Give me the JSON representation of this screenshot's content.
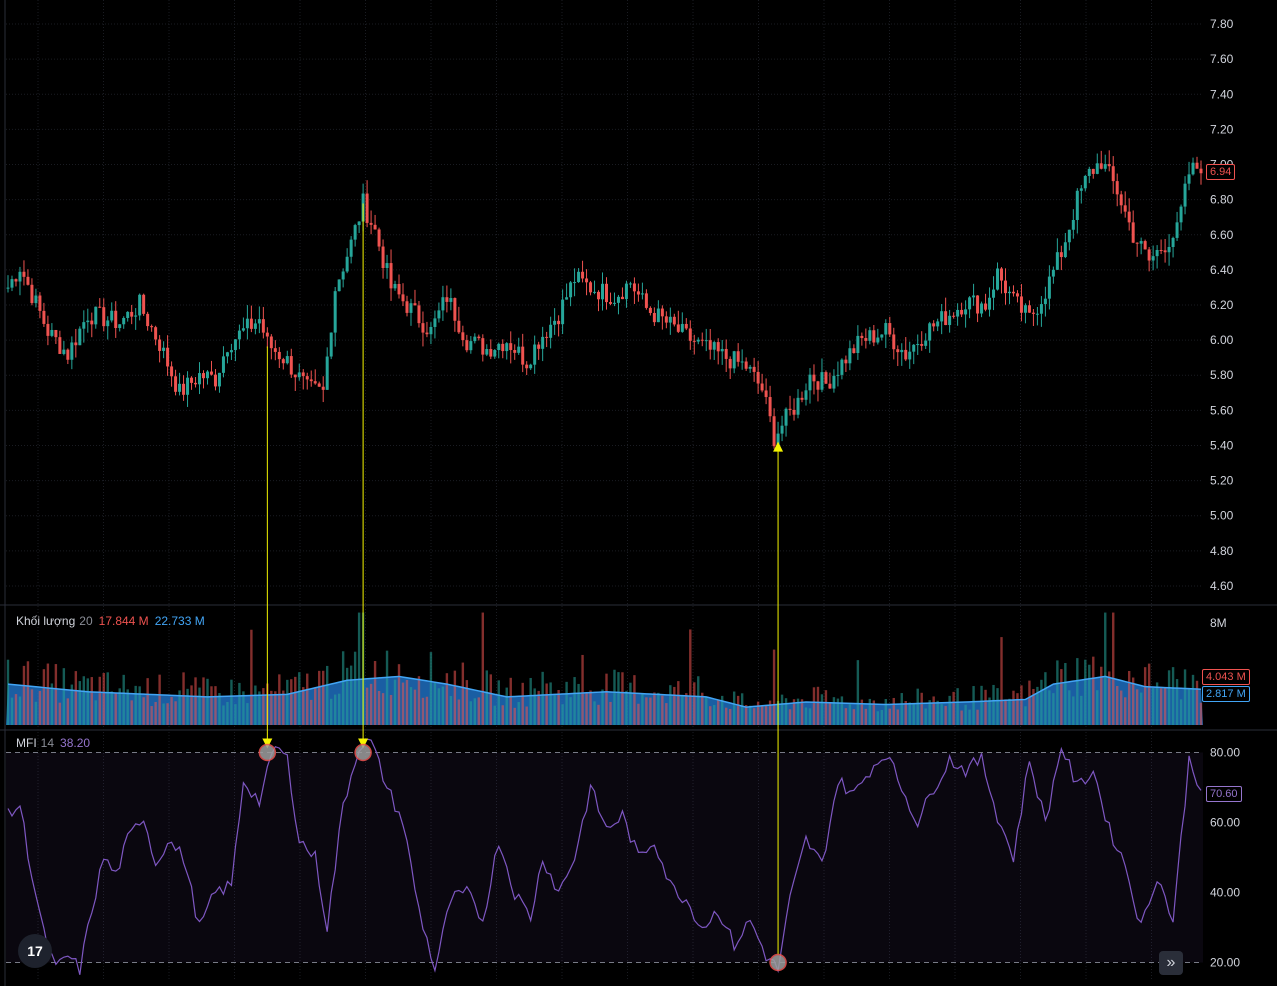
{
  "chart_data": [
    {
      "type": "candlestick",
      "name": "price",
      "y_ticks": [
        "7.80",
        "7.60",
        "7.40",
        "7.20",
        "7.00",
        "6.80",
        "6.60",
        "6.40",
        "6.20",
        "6.00",
        "5.80",
        "5.60",
        "5.40",
        "5.20",
        "5.00",
        "4.80",
        "4.60"
      ],
      "ylim": [
        4.52,
        7.88
      ],
      "last_price": "6.94",
      "up_color": "#26a69a",
      "down_color": "#ef5350",
      "anchor_points": [
        [
          0,
          6.3
        ],
        [
          3,
          6.42
        ],
        [
          10,
          6.05
        ],
        [
          15,
          5.92
        ],
        [
          20,
          6.15
        ],
        [
          28,
          6.1
        ],
        [
          33,
          6.2
        ],
        [
          38,
          5.98
        ],
        [
          43,
          5.7
        ],
        [
          48,
          5.8
        ],
        [
          52,
          5.78
        ],
        [
          55,
          5.98
        ],
        [
          63,
          6.12
        ],
        [
          65,
          5.98
        ],
        [
          70,
          5.88
        ],
        [
          75,
          5.72
        ],
        [
          79,
          5.7
        ],
        [
          82,
          6.3
        ],
        [
          86,
          6.55
        ],
        [
          89,
          6.78
        ],
        [
          92,
          6.62
        ],
        [
          96,
          6.3
        ],
        [
          100,
          6.2
        ],
        [
          106,
          6.05
        ],
        [
          110,
          6.25
        ],
        [
          115,
          6.0
        ],
        [
          120,
          5.95
        ],
        [
          125,
          6.0
        ],
        [
          130,
          5.88
        ],
        [
          133,
          6.0
        ],
        [
          138,
          6.15
        ],
        [
          142,
          6.35
        ],
        [
          146,
          6.3
        ],
        [
          152,
          6.25
        ],
        [
          156,
          6.33
        ],
        [
          160,
          6.18
        ],
        [
          165,
          6.1
        ],
        [
          170,
          6.02
        ],
        [
          175,
          5.95
        ],
        [
          180,
          5.9
        ],
        [
          185,
          5.85
        ],
        [
          189,
          5.72
        ],
        [
          192,
          5.45
        ],
        [
          195,
          5.55
        ],
        [
          198,
          5.65
        ],
        [
          201,
          5.8
        ],
        [
          205,
          5.75
        ],
        [
          210,
          5.9
        ],
        [
          214,
          6.0
        ],
        [
          220,
          6.05
        ],
        [
          225,
          5.92
        ],
        [
          230,
          6.05
        ],
        [
          236,
          6.15
        ],
        [
          240,
          6.22
        ],
        [
          245,
          6.2
        ],
        [
          248,
          6.38
        ],
        [
          252,
          6.22
        ],
        [
          256,
          6.12
        ],
        [
          260,
          6.28
        ],
        [
          264,
          6.5
        ],
        [
          268,
          6.8
        ],
        [
          271,
          6.95
        ],
        [
          274,
          7.02
        ],
        [
          278,
          6.85
        ],
        [
          282,
          6.6
        ],
        [
          286,
          6.45
        ],
        [
          290,
          6.55
        ],
        [
          293,
          6.62
        ],
        [
          296,
          6.95
        ],
        [
          299,
          7.0
        ]
      ],
      "count": 300
    },
    {
      "type": "volume",
      "name": "Khối lượng",
      "param": "20",
      "value_down": "17.844 M",
      "value_up": "22.733 M",
      "y_ticks": [
        "8M"
      ],
      "tag_volume": "4.043 M",
      "tag_ma": "2.817 M",
      "ma_anchor": [
        [
          0,
          3.2
        ],
        [
          20,
          2.6
        ],
        [
          50,
          2.2
        ],
        [
          70,
          2.4
        ],
        [
          85,
          3.5
        ],
        [
          98,
          3.8
        ],
        [
          110,
          3.2
        ],
        [
          125,
          2.2
        ],
        [
          150,
          2.6
        ],
        [
          175,
          2.2
        ],
        [
          185,
          1.4
        ],
        [
          200,
          1.8
        ],
        [
          220,
          1.6
        ],
        [
          240,
          1.8
        ],
        [
          255,
          2.0
        ],
        [
          262,
          3.2
        ],
        [
          275,
          3.8
        ],
        [
          285,
          3.0
        ],
        [
          299,
          2.8
        ]
      ],
      "ylim": [
        0,
        9
      ]
    },
    {
      "type": "line",
      "name": "MFI",
      "param": "14",
      "value": "38.20",
      "last_tag": "70.60",
      "y_ticks": [
        "80.00",
        "60.00",
        "40.00",
        "20.00"
      ],
      "ylim": [
        15,
        85
      ],
      "bands": [
        80,
        20
      ],
      "line_color": "#7e57c2",
      "anchor_points": [
        [
          0,
          62
        ],
        [
          3,
          65
        ],
        [
          6,
          45
        ],
        [
          9,
          28
        ],
        [
          12,
          18
        ],
        [
          15,
          22
        ],
        [
          18,
          18
        ],
        [
          21,
          35
        ],
        [
          24,
          50
        ],
        [
          27,
          45
        ],
        [
          30,
          55
        ],
        [
          34,
          62
        ],
        [
          37,
          48
        ],
        [
          40,
          55
        ],
        [
          44,
          50
        ],
        [
          48,
          30
        ],
        [
          52,
          40
        ],
        [
          56,
          42
        ],
        [
          59,
          72
        ],
        [
          63,
          66
        ],
        [
          67,
          82
        ],
        [
          70,
          78
        ],
        [
          73,
          55
        ],
        [
          77,
          50
        ],
        [
          80,
          30
        ],
        [
          84,
          65
        ],
        [
          88,
          82
        ],
        [
          91,
          83
        ],
        [
          95,
          70
        ],
        [
          99,
          60
        ],
        [
          103,
          35
        ],
        [
          107,
          18
        ],
        [
          111,
          38
        ],
        [
          115,
          40
        ],
        [
          119,
          32
        ],
        [
          123,
          55
        ],
        [
          127,
          40
        ],
        [
          131,
          33
        ],
        [
          134,
          50
        ],
        [
          138,
          40
        ],
        [
          142,
          50
        ],
        [
          146,
          70
        ],
        [
          150,
          58
        ],
        [
          154,
          62
        ],
        [
          158,
          50
        ],
        [
          162,
          55
        ],
        [
          166,
          42
        ],
        [
          170,
          38
        ],
        [
          174,
          30
        ],
        [
          178,
          35
        ],
        [
          182,
          25
        ],
        [
          186,
          32
        ],
        [
          190,
          22
        ],
        [
          193,
          18
        ],
        [
          196,
          38
        ],
        [
          200,
          55
        ],
        [
          204,
          48
        ],
        [
          208,
          72
        ],
        [
          212,
          68
        ],
        [
          216,
          75
        ],
        [
          220,
          80
        ],
        [
          224,
          70
        ],
        [
          228,
          60
        ],
        [
          232,
          70
        ],
        [
          236,
          78
        ],
        [
          240,
          75
        ],
        [
          244,
          78
        ],
        [
          248,
          62
        ],
        [
          252,
          50
        ],
        [
          256,
          78
        ],
        [
          260,
          60
        ],
        [
          264,
          82
        ],
        [
          268,
          70
        ],
        [
          272,
          75
        ],
        [
          276,
          58
        ],
        [
          280,
          48
        ],
        [
          284,
          30
        ],
        [
          288,
          45
        ],
        [
          292,
          32
        ],
        [
          296,
          78
        ],
        [
          299,
          70
        ]
      ],
      "count": 300
    }
  ],
  "annotations": [
    {
      "from_index": 65,
      "to_index": 65,
      "label": "peak"
    },
    {
      "from_index": 89,
      "to_index": 89,
      "label": "peak"
    },
    {
      "from_index": 193,
      "to_index": 193,
      "label": "trough"
    }
  ]
}
